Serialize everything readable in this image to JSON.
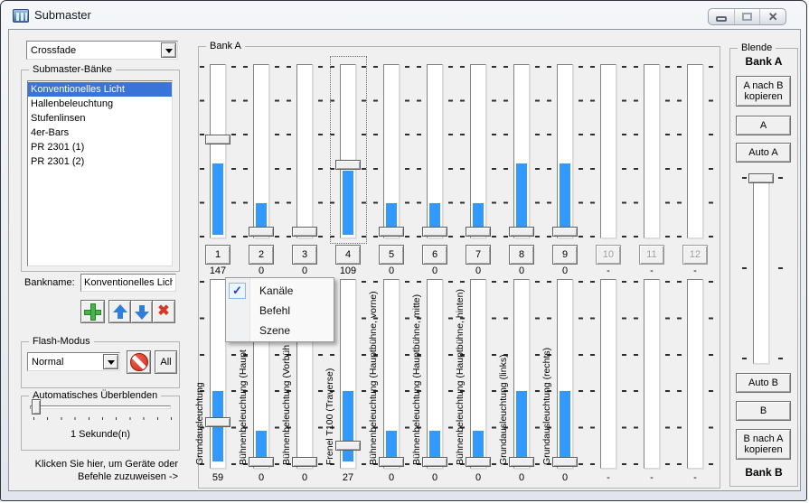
{
  "window": {
    "title": "Submaster"
  },
  "icons": {
    "check_glyph": "✓",
    "close_glyph": "✕",
    "delete_glyph": "✖",
    "add_icon": "plus-icon",
    "move_up_icon": "arrow-up-icon",
    "move_down_icon": "arrow-down-icon",
    "flash_block_icon": "no-entry-icon",
    "dropdown_icon": "triangle-down-icon",
    "minimize_icon": "minimize-icon",
    "maximize_icon": "maximize-icon"
  },
  "colors": {
    "slider_fill": "#3399ff",
    "list_selection": "#3875d6",
    "menu_check_blue": "#2b3bbb"
  },
  "left": {
    "mode_combo": {
      "value": "Crossfade"
    },
    "banks": {
      "label": "Submaster-Bänke",
      "items": [
        "Konventionelles Licht",
        "Hallenbeleuchtung",
        "Stufenlinsen",
        "4er-Bars",
        "PR 2301 (1)",
        "PR 2301 (2)"
      ],
      "selected": 0
    },
    "bankname_label": "Bankname:",
    "bankname_value": "Konventionelles Licht",
    "flash": {
      "label": "Flash-Modus",
      "combo_value": "Normal",
      "all_label": "All"
    },
    "autofade": {
      "label": "Automatisches Überblenden",
      "value_text": "1 Sekunde(n)"
    },
    "hint_line1": "Klicken Sie hier, um Geräte oder",
    "hint_line2": "Befehle zuzuweisen ->"
  },
  "bank_a": {
    "label": "Bank A",
    "sliders": [
      {
        "num": "1",
        "value": "147",
        "thumb": 43,
        "fill": [
          57,
          98
        ],
        "enabled": true
      },
      {
        "num": "2",
        "value": "0",
        "thumb": 99,
        "fill": [
          80,
          98
        ],
        "enabled": true
      },
      {
        "num": "3",
        "value": "0",
        "thumb": 99,
        "fill": null,
        "enabled": true
      },
      {
        "num": "4",
        "value": "109",
        "thumb": 58,
        "fill": [
          61,
          98
        ],
        "enabled": true,
        "focused": true
      },
      {
        "num": "5",
        "value": "0",
        "thumb": 99,
        "fill": [
          80,
          98
        ],
        "enabled": true
      },
      {
        "num": "6",
        "value": "0",
        "thumb": 99,
        "fill": [
          80,
          98
        ],
        "enabled": true
      },
      {
        "num": "7",
        "value": "0",
        "thumb": 99,
        "fill": [
          80,
          98
        ],
        "enabled": true
      },
      {
        "num": "8",
        "value": "0",
        "thumb": 99,
        "fill": [
          57,
          98
        ],
        "enabled": true
      },
      {
        "num": "9",
        "value": "0",
        "thumb": 99,
        "fill": [
          57,
          98
        ],
        "enabled": true
      },
      {
        "num": "10",
        "value": "-",
        "thumb": null,
        "fill": null,
        "enabled": false
      },
      {
        "num": "11",
        "value": "-",
        "thumb": null,
        "fill": null,
        "enabled": false
      },
      {
        "num": "12",
        "value": "-",
        "thumb": null,
        "fill": null,
        "enabled": false
      }
    ]
  },
  "bank_b": {
    "sliders": [
      {
        "label": "Grundausleuchtung",
        "value": "59",
        "thumb": 77,
        "fill": [
          59,
          96
        ]
      },
      {
        "label": "Bühnenbeleuchtung (Haupt",
        "value": "0",
        "thumb": 99,
        "fill": [
          80,
          96
        ]
      },
      {
        "label": "Bühnenbeleuchtung (Vorbüh",
        "value": "0",
        "thumb": 99,
        "fill": null
      },
      {
        "label": "Frenel T100 (Traverse)",
        "value": "27",
        "thumb": 90,
        "fill": [
          59,
          96
        ]
      },
      {
        "label": "Bühnenbeleuchtung (Hauptbühne, vorne)",
        "value": "0",
        "thumb": 99,
        "fill": [
          80,
          96
        ]
      },
      {
        "label": "Bühnenbeleuchtung (Hauptbühne, mitte)",
        "value": "0",
        "thumb": 99,
        "fill": [
          80,
          96
        ]
      },
      {
        "label": "Bühnenbeleuchtung (Hauptbühne, hinten)",
        "value": "0",
        "thumb": 99,
        "fill": [
          80,
          96
        ]
      },
      {
        "label": "Grundausleuchtung (links)",
        "value": "0",
        "thumb": 99,
        "fill": [
          59,
          96
        ]
      },
      {
        "label": "Grundausleuchtung (rechts)",
        "value": "0",
        "thumb": 99,
        "fill": [
          59,
          96
        ]
      },
      {
        "label": "",
        "value": "-",
        "thumb": null,
        "fill": null
      },
      {
        "label": "",
        "value": "-",
        "thumb": null,
        "fill": null
      },
      {
        "label": "",
        "value": "-",
        "thumb": null,
        "fill": null
      }
    ]
  },
  "context_menu": {
    "items": [
      {
        "label": "Kanäle",
        "checked": true
      },
      {
        "label": "Befehl",
        "checked": false
      },
      {
        "label": "Szene",
        "checked": false
      }
    ]
  },
  "blende": {
    "label": "Blende",
    "bank_a_label": "Bank A",
    "copy_a_to_b": "A nach B kopieren",
    "a_label": "A",
    "auto_a_label": "Auto A",
    "auto_b_label": "Auto B",
    "b_label": "B",
    "copy_b_to_a": "B nach A kopieren",
    "bank_b_label": "Bank B"
  }
}
